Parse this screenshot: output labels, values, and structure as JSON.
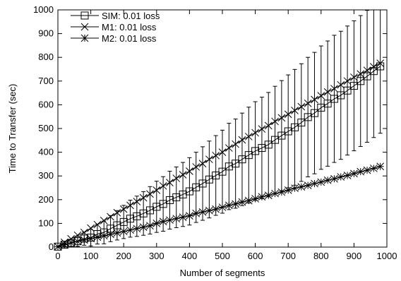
{
  "chart_data": {
    "type": "line",
    "title": "",
    "xlabel": "Number of segments",
    "ylabel": "Time to Transfer (sec)",
    "xlim": [
      0,
      1000
    ],
    "ylim": [
      0,
      1000
    ],
    "xticks": [
      0,
      100,
      200,
      300,
      400,
      500,
      600,
      700,
      800,
      900,
      1000
    ],
    "yticks": [
      0,
      100,
      200,
      300,
      400,
      500,
      600,
      700,
      800,
      900,
      1000
    ],
    "grid": false,
    "legend_position": "top-left",
    "series": [
      {
        "name": "SIM: 0.01 loss",
        "marker": "square",
        "x": [
          0,
          20,
          40,
          60,
          80,
          100,
          120,
          140,
          160,
          180,
          200,
          220,
          240,
          260,
          280,
          300,
          320,
          340,
          360,
          380,
          400,
          420,
          440,
          460,
          480,
          500,
          520,
          540,
          560,
          580,
          600,
          620,
          640,
          660,
          680,
          700,
          720,
          740,
          760,
          780,
          800,
          820,
          840,
          860,
          880,
          900,
          920,
          940,
          960,
          980
        ],
        "y": [
          2,
          10,
          18,
          25,
          36,
          40,
          55,
          62,
          78,
          92,
          106,
          120,
          130,
          142,
          155,
          170,
          182,
          198,
          210,
          222,
          235,
          252,
          268,
          285,
          302,
          318,
          340,
          352,
          370,
          388,
          405,
          418,
          432,
          452,
          470,
          488,
          505,
          525,
          548,
          565,
          588,
          605,
          625,
          640,
          660,
          680,
          700,
          720,
          742,
          762
        ],
        "yerr": [
          0,
          8,
          15,
          22,
          28,
          35,
          42,
          48,
          55,
          62,
          70,
          78,
          85,
          92,
          100,
          108,
          115,
          122,
          128,
          135,
          142,
          148,
          155,
          162,
          168,
          175,
          182,
          188,
          195,
          202,
          208,
          214,
          220,
          226,
          232,
          238,
          244,
          248,
          252,
          256,
          260,
          264,
          268,
          270,
          272,
          274,
          276,
          278,
          280,
          282
        ]
      },
      {
        "name": "M1: 0.01 loss",
        "marker": "x",
        "x": [
          0,
          20,
          40,
          60,
          80,
          100,
          120,
          140,
          160,
          180,
          200,
          220,
          240,
          260,
          280,
          300,
          320,
          340,
          360,
          380,
          400,
          420,
          440,
          460,
          480,
          500,
          520,
          540,
          560,
          580,
          600,
          620,
          640,
          660,
          680,
          700,
          720,
          740,
          760,
          780,
          800,
          820,
          840,
          860,
          880,
          900,
          920,
          940,
          960,
          980
        ],
        "y": [
          2,
          20,
          35,
          50,
          62,
          80,
          95,
          112,
          128,
          145,
          160,
          176,
          192,
          208,
          224,
          240,
          258,
          272,
          290,
          305,
          320,
          338,
          352,
          370,
          386,
          400,
          418,
          434,
          452,
          466,
          482,
          498,
          512,
          530,
          545,
          560,
          576,
          592,
          606,
          622,
          638,
          654,
          668,
          684,
          700,
          716,
          730,
          745,
          760,
          775
        ],
        "yerr": null
      },
      {
        "name": "M2: 0.01 loss",
        "marker": "star",
        "x": [
          0,
          20,
          40,
          60,
          80,
          100,
          120,
          140,
          160,
          180,
          200,
          220,
          240,
          260,
          280,
          300,
          320,
          340,
          360,
          380,
          400,
          420,
          440,
          460,
          480,
          500,
          520,
          540,
          560,
          580,
          600,
          620,
          640,
          660,
          680,
          700,
          720,
          740,
          760,
          780,
          800,
          820,
          840,
          860,
          880,
          900,
          920,
          940,
          960,
          980
        ],
        "y": [
          2,
          10,
          18,
          24,
          30,
          36,
          42,
          48,
          54,
          60,
          66,
          72,
          78,
          84,
          90,
          100,
          108,
          114,
          120,
          126,
          132,
          142,
          148,
          154,
          160,
          168,
          176,
          182,
          190,
          196,
          204,
          212,
          218,
          226,
          232,
          240,
          248,
          254,
          260,
          268,
          274,
          282,
          288,
          296,
          302,
          310,
          318,
          324,
          332,
          340
        ],
        "yerr": null
      }
    ]
  }
}
